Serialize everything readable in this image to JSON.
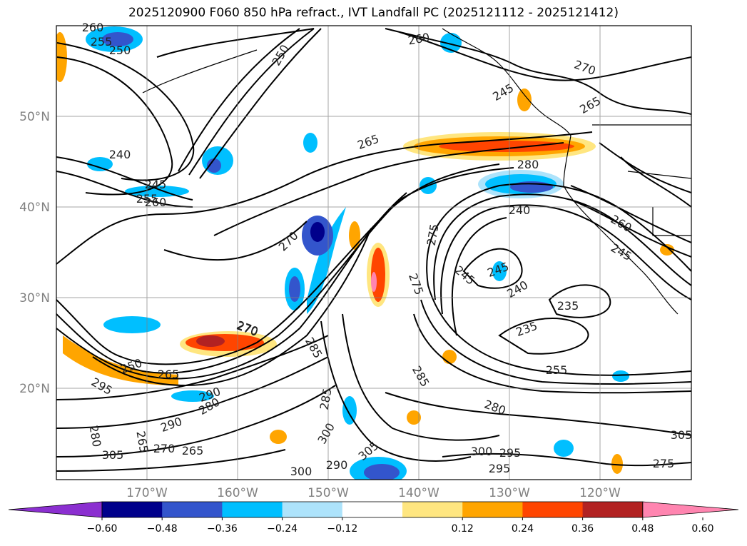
{
  "title": "2025120900 F060 850 hPa refract., IVT Landfall PC (2025121112 - 2025121412)",
  "latitude_labels": [
    "50°N",
    "40°N",
    "30°N",
    "20°N"
  ],
  "longitude_labels": [
    "170°W",
    "160°W",
    "150°W",
    "140°W",
    "130°W",
    "120°W"
  ],
  "colorbar": {
    "tick_labels": [
      "−0.60",
      "−0.48",
      "−0.36",
      "−0.24",
      "−0.12",
      "0.12",
      "0.24",
      "0.36",
      "0.48",
      "0.60"
    ],
    "colors": [
      "#8b2fd0",
      "#00008b",
      "#3355cc",
      "#00bfff",
      "#ade3fb",
      "#ffffff",
      "#ffe680",
      "#ffa500",
      "#ff4500",
      "#b22222",
      "#ff85b0"
    ]
  },
  "contour_labels": [
    "260",
    "255",
    "250",
    "250",
    "260",
    "270",
    "265",
    "265",
    "240",
    "245",
    "255",
    "260",
    "270",
    "280",
    "240",
    "260",
    "245",
    "275",
    "245",
    "245",
    "240",
    "235",
    "235",
    "270",
    "285",
    "275",
    "285",
    "255",
    "295",
    "250",
    "265",
    "290",
    "280",
    "290",
    "270",
    "265",
    "280",
    "270",
    "305",
    "300",
    "290",
    "285",
    "300",
    "280",
    "305",
    "300",
    "295",
    "295",
    "305",
    "275",
    "265",
    "245"
  ],
  "colors": {
    "contour": "#000000",
    "grid": "#808080"
  }
}
